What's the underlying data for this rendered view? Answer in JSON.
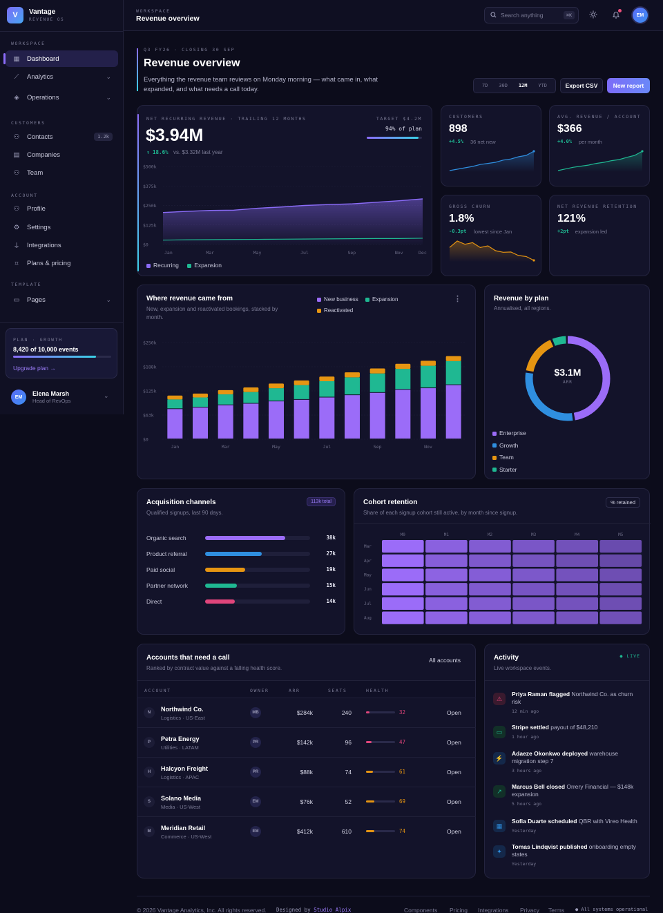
{
  "brand": {
    "name": "Vantage",
    "sub": "REVENUE OS"
  },
  "topbar": {
    "section": "WORKSPACE",
    "title": "Revenue overview",
    "search_placeholder": "Search anything",
    "search_kbd": "⌘K",
    "avatar": "EM"
  },
  "sidebar": {
    "sections": [
      {
        "label": "WORKSPACE",
        "items": [
          {
            "label": "Dashboard",
            "icon": "grid-icon",
            "active": true
          },
          {
            "label": "Analytics",
            "icon": "chart-icon",
            "chev": true
          },
          {
            "label": "Operations",
            "icon": "layers-icon",
            "chev": true
          }
        ]
      },
      {
        "label": "CUSTOMERS",
        "items": [
          {
            "label": "Contacts",
            "icon": "user-icon",
            "count": "1.2k"
          },
          {
            "label": "Companies",
            "icon": "building-icon"
          },
          {
            "label": "Team",
            "icon": "users-icon"
          }
        ]
      },
      {
        "label": "ACCOUNT",
        "items": [
          {
            "label": "Profile",
            "icon": "user-icon"
          },
          {
            "label": "Settings",
            "icon": "gear-icon"
          },
          {
            "label": "Integrations",
            "icon": "plug-icon"
          },
          {
            "label": "Plans & pricing",
            "icon": "tag-icon"
          }
        ]
      },
      {
        "label": "TEMPLATE",
        "items": [
          {
            "label": "Pages",
            "icon": "page-icon",
            "chev": true
          }
        ]
      }
    ],
    "plan": {
      "label": "PLAN · GROWTH",
      "usage": "8,420 of 10,000 events",
      "progress": 0.842,
      "upgrade": "Upgrade plan →"
    },
    "user": {
      "initials": "EM",
      "name": "Elena Marsh",
      "role": "Head of RevOps"
    }
  },
  "header": {
    "eyebrow": "Q3 FY26 · CLOSING 30 SEP",
    "title": "Revenue overview",
    "desc_line1": "Everything the revenue team reviews on Monday morning — what came in, what",
    "desc_line2": "expanded, and what needs a call today.",
    "ranges": [
      "7D",
      "30D",
      "12M",
      "YTD"
    ],
    "active_range": "12M",
    "export": "Export CSV",
    "new_report": "New report"
  },
  "nrr": {
    "label": "NET RECURRING REVENUE · TRAILING 12 MONTHS",
    "value": "$3.94M",
    "delta": "↑ 18.6%",
    "delta_note": "vs. $3.32M last year",
    "target_label": "TARGET $4.2M",
    "target_pct": "94% of plan",
    "target_progress": 0.94,
    "legend": [
      "Recurring",
      "Expansion"
    ],
    "chart_data": {
      "type": "area",
      "x": [
        "Jan",
        "Feb",
        "Mar",
        "Apr",
        "May",
        "Jun",
        "Jul",
        "Aug",
        "Sep",
        "Oct",
        "Nov",
        "Dec"
      ],
      "x_tick_labels": [
        "Jan",
        "Mar",
        "May",
        "Jul",
        "Sep",
        "Nov",
        "Dec"
      ],
      "y_tick_labels": [
        "$500k",
        "$375k",
        "$250k",
        "$125k",
        "$0"
      ],
      "ylim": [
        0,
        500
      ],
      "series": [
        {
          "name": "Recurring",
          "color": "#8b6cf8",
          "values": [
            205,
            212,
            218,
            220,
            232,
            240,
            250,
            256,
            260,
            270,
            280,
            292
          ]
        },
        {
          "name": "Expansion",
          "color": "#1fb892",
          "values": [
            28,
            30,
            31,
            32,
            33,
            34,
            35,
            36,
            37,
            38,
            38,
            40
          ]
        }
      ]
    }
  },
  "kpis": [
    {
      "label": "CUSTOMERS",
      "value": "898",
      "delta": "+4.5%",
      "note": "36 net new",
      "color": "#2f8fe0",
      "delta_color": "#1fb892",
      "values": [
        1,
        1.5,
        2,
        2.5,
        3.2,
        3.6,
        4,
        4.8,
        5.2,
        6,
        6.5,
        8
      ]
    },
    {
      "label": "AVG. REVENUE / ACCOUNT",
      "value": "$366",
      "delta": "+4.0%",
      "note": "per month",
      "color": "#1fb892",
      "delta_color": "#1fb892",
      "values": [
        1,
        1.6,
        2.2,
        2.6,
        3,
        3.6,
        4,
        4.6,
        5,
        5.8,
        6.5,
        8
      ]
    },
    {
      "label": "GROSS CHURN",
      "value": "1.8%",
      "delta": "-0.3pt",
      "note": "lowest since Jan",
      "color": "#e69512",
      "delta_color": "#1fb892",
      "values": [
        6,
        8,
        7,
        7.5,
        6,
        6.5,
        5,
        4.5,
        4.6,
        3.5,
        3.2,
        2
      ]
    },
    {
      "label": "NET REVENUE RETENTION",
      "value": "121%",
      "delta": "+2pt",
      "note": "expansion led",
      "color": "#1fb892",
      "delta_color": "#1fb892",
      "values": []
    }
  ],
  "sources": {
    "title": "Where revenue came from",
    "desc_line1": "New, expansion and reactivated bookings, stacked by",
    "desc_line2": "month.",
    "legend": [
      "New business",
      "Expansion",
      "Reactivated"
    ],
    "chart_data": {
      "type": "bar",
      "stacked": true,
      "categories": [
        "Jan",
        "Feb",
        "Mar",
        "Apr",
        "May",
        "Jun",
        "Jul",
        "Aug",
        "Sep",
        "Oct",
        "Nov",
        "Dec"
      ],
      "x_tick_labels": [
        "Jan",
        "Mar",
        "May",
        "Jul",
        "Sep",
        "Nov"
      ],
      "y_tick_labels": [
        "$250k",
        "$188k",
        "$125k",
        "$63k",
        "$0"
      ],
      "ylim": [
        0,
        250
      ],
      "series": [
        {
          "name": "New business",
          "color": "#9b6cf8",
          "values": [
            78,
            82,
            88,
            92,
            98,
            102,
            108,
            114,
            120,
            128,
            132,
            140
          ]
        },
        {
          "name": "Expansion",
          "color": "#1fb892",
          "values": [
            25,
            26,
            28,
            30,
            34,
            38,
            42,
            46,
            50,
            54,
            58,
            62
          ]
        },
        {
          "name": "Reactivated",
          "color": "#e69512",
          "values": [
            10,
            10,
            11,
            12,
            12,
            12,
            12,
            13,
            13,
            13,
            13,
            13
          ]
        }
      ]
    }
  },
  "plans": {
    "title": "Revenue by plan",
    "desc": "Annualised, all regions.",
    "center_value": "$3.1M",
    "center_label": "ARR",
    "chart_data": {
      "type": "pie",
      "categories": [
        "Enterprise",
        "Growth",
        "Team",
        "Starter"
      ],
      "values": [
        48,
        30,
        16,
        6
      ],
      "colors": [
        "#9b6cf8",
        "#2f8fe0",
        "#e69512",
        "#1fb892"
      ]
    }
  },
  "acquisition": {
    "title": "Acquisition channels",
    "desc": "Qualified signups, last 90 days.",
    "badge": "113k total",
    "chart_data": {
      "type": "bar",
      "orientation": "horizontal",
      "categories": [
        "Organic search",
        "Product referral",
        "Paid social",
        "Partner network",
        "Direct"
      ],
      "values": [
        38,
        27,
        19,
        15,
        14
      ],
      "labels": [
        "38k",
        "27k",
        "19k",
        "15k",
        "14k"
      ],
      "max": 50,
      "colors": [
        "#9b6cf8",
        "#2f8fe0",
        "#e69512",
        "#1fb892",
        "#e0457b"
      ]
    }
  },
  "cohort": {
    "title": "Cohort retention",
    "desc": "Share of each signup cohort still active, by month since signup.",
    "badge": "% retained",
    "chart_data": {
      "type": "heatmap",
      "columns": [
        "M0",
        "M1",
        "M2",
        "M3",
        "M4",
        "M5"
      ],
      "rows": [
        "Mar",
        "Apr",
        "May",
        "Jun",
        "Jul",
        "Aug"
      ],
      "values": [
        [
          100,
          92,
          88,
          84,
          80,
          76
        ],
        [
          100,
          90,
          86,
          82,
          78,
          74
        ],
        [
          100,
          93,
          89,
          85,
          81,
          78
        ],
        [
          100,
          91,
          87,
          83,
          80,
          77
        ],
        [
          100,
          92,
          88,
          84,
          81,
          78
        ],
        [
          100,
          94,
          90,
          86,
          82,
          79
        ]
      ]
    }
  },
  "accounts": {
    "title": "Accounts that need a call",
    "desc": "Ranked by contract value against a falling health score.",
    "all": "All accounts",
    "columns": [
      "ACCOUNT",
      "OWNER",
      "ARR",
      "SEATS",
      "HEALTH"
    ],
    "rows": [
      {
        "initial": "N",
        "name": "Northwind Co.",
        "meta": "Logistics · US-East",
        "owner": "MB",
        "arr": "$284k",
        "seats": "240",
        "health": 32,
        "color": "#e0457b",
        "action": "Open"
      },
      {
        "initial": "P",
        "name": "Petra Energy",
        "meta": "Utilities · LATAM",
        "owner": "PR",
        "arr": "$142k",
        "seats": "96",
        "health": 47,
        "color": "#e0457b",
        "action": "Open"
      },
      {
        "initial": "H",
        "name": "Halcyon Freight",
        "meta": "Logistics · APAC",
        "owner": "PR",
        "arr": "$88k",
        "seats": "74",
        "health": 61,
        "color": "#e69512",
        "action": "Open"
      },
      {
        "initial": "S",
        "name": "Solano Media",
        "meta": "Media · US-West",
        "owner": "EM",
        "arr": "$76k",
        "seats": "52",
        "health": 69,
        "color": "#e69512",
        "action": "Open"
      },
      {
        "initial": "M",
        "name": "Meridian Retail",
        "meta": "Commerce · US-West",
        "owner": "EM",
        "arr": "$412k",
        "seats": "610",
        "health": 74,
        "color": "#e69512",
        "action": "Open"
      }
    ]
  },
  "activity": {
    "title": "Activity",
    "desc": "Live workspace events.",
    "live": "● LIVE",
    "items": [
      {
        "icon": "alert-icon",
        "glyph": "⚠",
        "color": "#e0457b",
        "bg": "#3a1a2e",
        "actor": "Priya Raman",
        "verb": " flagged ",
        "l1": "Northwind Co. as churn",
        "l2": "risk",
        "time": "12 min ago"
      },
      {
        "icon": "card-icon",
        "glyph": "▭",
        "color": "#1fb892",
        "bg": "#123028",
        "actor": "Stripe",
        "verb": " settled ",
        "l1": "payout of $48,210",
        "l2": "",
        "time": "1 hour ago"
      },
      {
        "icon": "bolt-icon",
        "glyph": "⚡",
        "color": "#2f8fe0",
        "bg": "#14284a",
        "actor": "Adaeze Okonkwo",
        "verb": " deployed ",
        "l1": "warehouse",
        "l2": "migration step 7",
        "time": "3 hours ago"
      },
      {
        "icon": "trend-icon",
        "glyph": "↗",
        "color": "#1fb892",
        "bg": "#123028",
        "actor": "Marcus Bell",
        "verb": " closed ",
        "l1": "Orrery Financial — $148k",
        "l2": "expansion",
        "time": "5 hours ago"
      },
      {
        "icon": "calendar-icon",
        "glyph": "▦",
        "color": "#2f8fe0",
        "bg": "#14284a",
        "actor": "Sofia Duarte",
        "verb": " scheduled ",
        "l1": "QBR with Vireo Health",
        "l2": "",
        "time": "Yesterday"
      },
      {
        "icon": "spark-icon",
        "glyph": "✦",
        "color": "#2f8fe0",
        "bg": "#14284a",
        "actor": "Tomas Lindqvist",
        "verb": " published ",
        "l1": "onboarding empty",
        "l2": "states",
        "time": "Yesterday"
      }
    ]
  },
  "footer": {
    "copy": "© 2026 Vantage Analytics, Inc. All rights reserved.",
    "designed": "Designed by",
    "studio": "Studio Alpix",
    "links": [
      "Components",
      "Pricing",
      "Integrations",
      "Privacy",
      "Terms"
    ],
    "status": "● All systems operational"
  }
}
